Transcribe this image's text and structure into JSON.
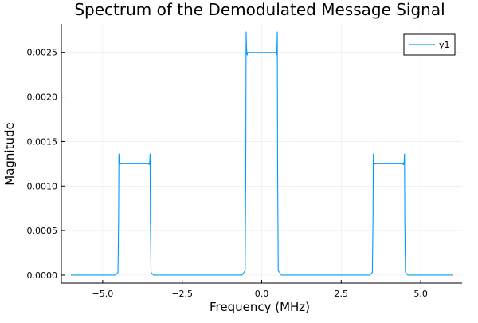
{
  "chart_data": {
    "type": "line",
    "title": "Spectrum of the Demodulated Message Signal",
    "xlabel": "Frequency (MHz)",
    "ylabel": "Magnitude",
    "xlim": [
      -6.3,
      6.3
    ],
    "ylim": [
      -9e-05,
      0.00282
    ],
    "xticks": [
      -5.0,
      -2.5,
      0.0,
      2.5,
      5.0
    ],
    "xtick_labels": [
      "−5.0",
      "−2.5",
      "0.0",
      "2.5",
      "5.0"
    ],
    "yticks": [
      0.0,
      0.0005,
      0.001,
      0.0015,
      0.002,
      0.0025
    ],
    "ytick_labels": [
      "0.0000",
      "0.0005",
      "0.0010",
      "0.0015",
      "0.0020",
      "0.0025"
    ],
    "grid": true,
    "legend_position": "top-right",
    "series": [
      {
        "name": "y1",
        "color": "#009AFA",
        "x": [
          -6.0,
          -4.6,
          -4.52,
          -4.5,
          -4.49,
          -4.48,
          -4.46,
          -4.44,
          -4.4,
          -4.0,
          -3.6,
          -3.56,
          -3.54,
          -3.52,
          -3.51,
          -3.5,
          -3.48,
          -3.4,
          -0.62,
          -0.52,
          -0.5,
          -0.49,
          -0.48,
          -0.46,
          -0.44,
          -0.4,
          0.0,
          0.4,
          0.44,
          0.46,
          0.48,
          0.49,
          0.5,
          0.52,
          0.62,
          3.4,
          3.48,
          3.5,
          3.51,
          3.52,
          3.54,
          3.56,
          3.6,
          4.0,
          4.4,
          4.44,
          4.46,
          4.48,
          4.49,
          4.5,
          4.52,
          4.6,
          6.0
        ],
        "y": [
          0.0,
          0.0,
          3e-05,
          0.00062,
          0.00136,
          0.00128,
          0.00124,
          0.00125,
          0.00125,
          0.00125,
          0.00125,
          0.00125,
          0.00124,
          0.00128,
          0.00136,
          0.00062,
          3e-05,
          0.0,
          0.0,
          5e-05,
          0.00125,
          0.00273,
          0.00257,
          0.00247,
          0.0025,
          0.0025,
          0.0025,
          0.0025,
          0.0025,
          0.00247,
          0.00257,
          0.00273,
          0.00125,
          5e-05,
          0.0,
          0.0,
          3e-05,
          0.00062,
          0.00136,
          0.00128,
          0.00124,
          0.00125,
          0.00125,
          0.00125,
          0.00125,
          0.00125,
          0.00124,
          0.00128,
          0.00136,
          0.00062,
          3e-05,
          0.0,
          0.0
        ]
      }
    ]
  }
}
